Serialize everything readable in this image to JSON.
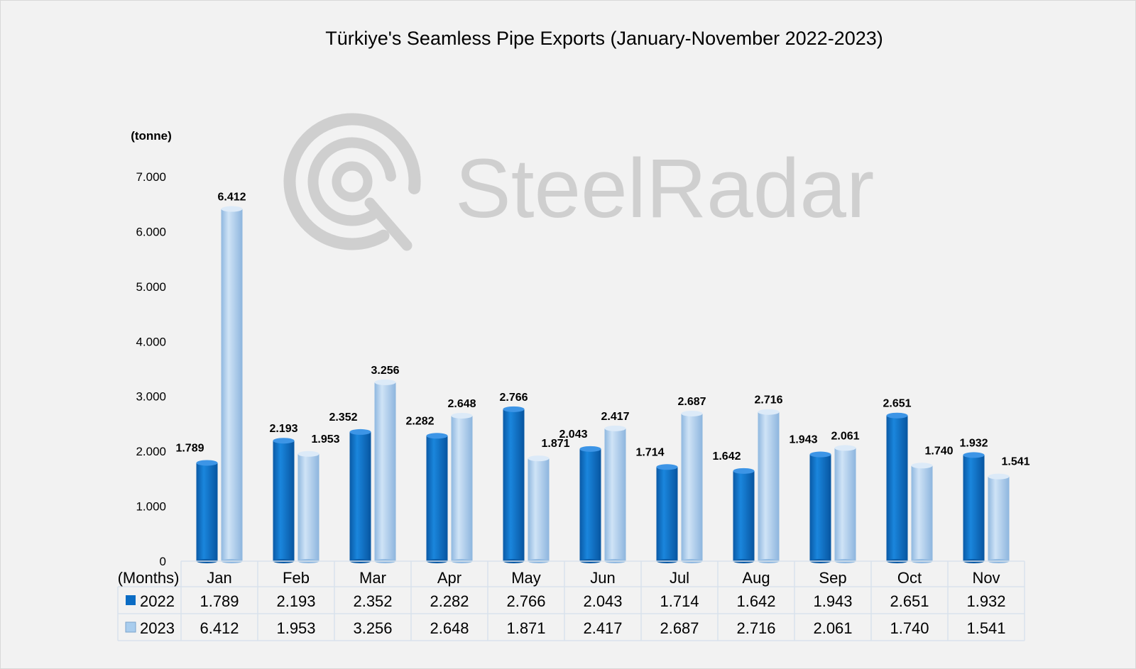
{
  "chart_data": {
    "type": "bar",
    "title": "Türkiye's Seamless Pipe Exports (January-November 2022-2023)",
    "ylabel": "(tonne)",
    "xlabel": "(Months)",
    "ylim": [
      0,
      7000
    ],
    "yticks": [
      0,
      1000,
      2000,
      3000,
      4000,
      5000,
      6000,
      7000
    ],
    "ytick_labels": [
      "0",
      "1.000",
      "2.000",
      "3.000",
      "4.000",
      "5.000",
      "6.000",
      "7.000"
    ],
    "categories": [
      "Jan",
      "Feb",
      "Mar",
      "Apr",
      "May",
      "Jun",
      "Jul",
      "Aug",
      "Sep",
      "Oct",
      "Nov"
    ],
    "series": [
      {
        "name": "2022",
        "color": "#0b6cc4",
        "values": [
          1789,
          2193,
          2352,
          2282,
          2766,
          2043,
          1714,
          1642,
          1943,
          2651,
          1932
        ],
        "labels": [
          "1.789",
          "2.193",
          "2.352",
          "2.282",
          "2.766",
          "2.043",
          "1.714",
          "1.642",
          "1.943",
          "2.651",
          "1.932"
        ]
      },
      {
        "name": "2023",
        "color": "#a9cdee",
        "values": [
          6412,
          1953,
          3256,
          2648,
          1871,
          2417,
          2687,
          2716,
          2061,
          1740,
          1541
        ],
        "labels": [
          "6.412",
          "1.953",
          "3.256",
          "2.648",
          "1.871",
          "2.417",
          "2.687",
          "2.716",
          "2.061",
          "1.740",
          "1.541"
        ]
      }
    ],
    "grid": false,
    "legend": "data-table"
  },
  "watermark": {
    "text": "SteelRadar"
  }
}
